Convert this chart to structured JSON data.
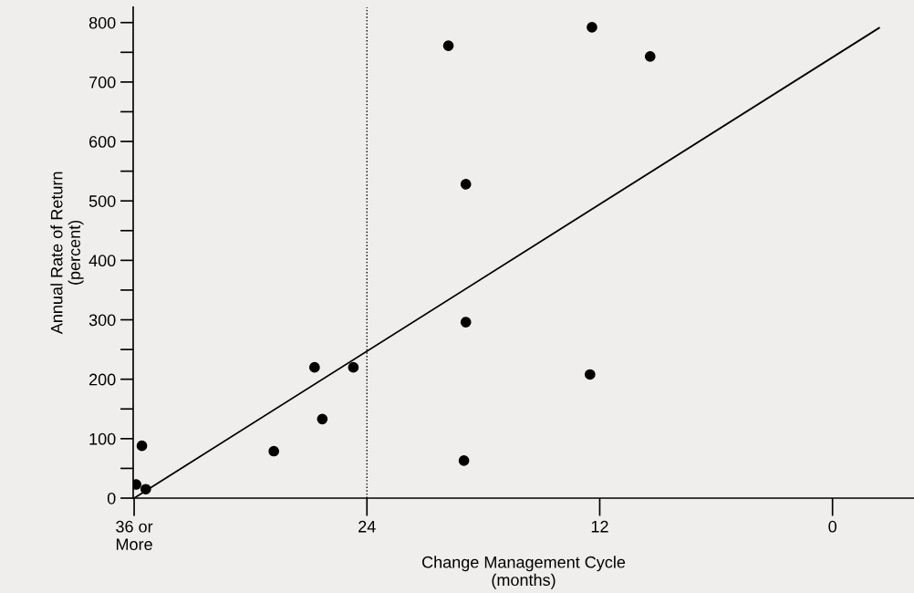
{
  "chart_data": {
    "type": "scatter",
    "xlabel": "Change Management Cycle\n(months)",
    "ylabel": "Annual Rate of Return\n(percent)",
    "x": [
      35.9,
      35.4,
      35.6,
      28.8,
      26.7,
      26.3,
      24.7,
      19.8,
      18.9,
      18.9,
      19.0,
      12.4,
      12.5,
      9.4
    ],
    "series": [
      {
        "color": "#000000",
        "values": [
          23,
          15,
          88,
          79,
          220,
          133,
          220,
          761,
          528,
          296,
          63,
          792,
          208,
          743
        ]
      },
      {
        "type": "line",
        "color": "#000000",
        "marker": "none",
        "x": [
          36,
          -2.4
        ],
        "values": [
          0,
          791
        ]
      }
    ],
    "xlim": [
      36.05,
      -4.2
    ],
    "ylim": [
      0,
      826
    ],
    "xticks": [
      {
        "value": 36,
        "label": "36 or\nMore"
      },
      24,
      12,
      0
    ],
    "yticks": [
      0,
      {
        "value": 50,
        "label": null
      },
      100,
      {
        "value": 150,
        "label": null
      },
      200,
      {
        "value": 250,
        "label": null
      },
      300,
      {
        "value": 350,
        "label": null
      },
      400,
      {
        "value": 450,
        "label": null
      },
      500,
      {
        "value": 550,
        "label": null
      },
      600,
      {
        "value": 650,
        "label": null
      },
      700,
      {
        "value": 750,
        "label": null
      },
      800
    ],
    "ref_lines": [
      {
        "axis": "x",
        "value": 24,
        "label": null,
        "line_style": "dotted",
        "color": "#000000"
      }
    ],
    "grid": false,
    "legend": false,
    "marker": "circle"
  }
}
